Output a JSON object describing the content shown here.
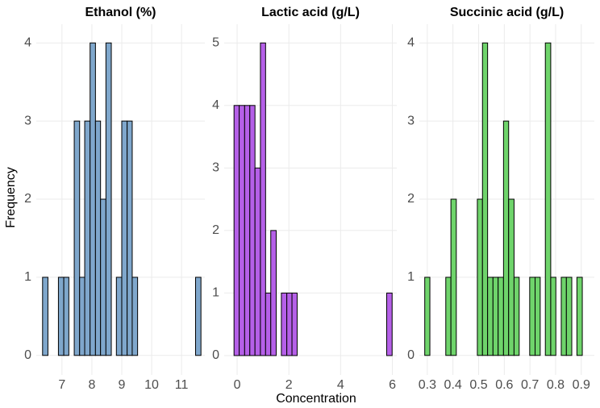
{
  "shared": {
    "x_label": "Concentration",
    "y_label": "Frequency"
  },
  "chart_data": [
    {
      "type": "histogram",
      "title": "Ethanol (%)",
      "color": "#7fa7cc",
      "bins": [
        6.35,
        6.53,
        6.7,
        6.88,
        7.06,
        7.23,
        7.41,
        7.59,
        7.76,
        7.94,
        8.12,
        8.29,
        8.47,
        8.65,
        8.82,
        9.0,
        9.18,
        9.35,
        9.53,
        9.71,
        9.88,
        10.06,
        10.24,
        10.41,
        10.59,
        10.77,
        10.94,
        11.12,
        11.3,
        11.47,
        11.65
      ],
      "values": [
        1,
        0,
        0,
        1,
        1,
        0,
        3,
        1,
        3,
        4,
        3,
        2,
        4,
        0,
        1,
        3,
        3,
        1,
        0,
        0,
        0,
        0,
        0,
        0,
        0,
        0,
        0,
        0,
        0,
        1
      ],
      "xlim": [
        6.14,
        11.78
      ],
      "xticks": [
        7,
        8,
        9,
        10,
        11
      ],
      "ylim": [
        -0.25,
        4.24
      ],
      "yticks": [
        0,
        1,
        2,
        3,
        4
      ],
      "grid": true
    },
    {
      "type": "histogram",
      "title": "Lactic acid (g/L)",
      "color": "#b560e8",
      "bins": [
        -0.12,
        0.08,
        0.29,
        0.49,
        0.69,
        0.9,
        1.1,
        1.3,
        1.51,
        1.71,
        1.92,
        2.12,
        2.32,
        2.53,
        2.73,
        2.93,
        3.14,
        3.34,
        3.54,
        3.75,
        3.95,
        4.16,
        4.36,
        4.56,
        4.77,
        4.97,
        5.17,
        5.38,
        5.58,
        5.78,
        5.99
      ],
      "values": [
        4,
        4,
        4,
        4,
        3,
        5,
        1,
        2,
        0,
        1,
        1,
        1,
        0,
        0,
        0,
        0,
        0,
        0,
        0,
        0,
        0,
        0,
        0,
        0,
        0,
        0,
        0,
        0,
        0,
        1
      ],
      "xlim": [
        -0.5,
        6.17
      ],
      "xticks": [
        0,
        2,
        4,
        6
      ],
      "ylim": [
        -0.31,
        5.3
      ],
      "yticks": [
        0,
        1,
        2,
        3,
        4,
        5
      ],
      "grid": true
    },
    {
      "type": "histogram",
      "title": "Succinic acid (g/L)",
      "color": "#6fd46b",
      "bins": [
        0.29,
        0.31,
        0.331,
        0.351,
        0.372,
        0.392,
        0.413,
        0.433,
        0.454,
        0.474,
        0.495,
        0.515,
        0.535,
        0.556,
        0.576,
        0.597,
        0.617,
        0.638,
        0.658,
        0.679,
        0.699,
        0.72,
        0.74,
        0.76,
        0.781,
        0.801,
        0.822,
        0.842,
        0.863,
        0.883,
        0.904
      ],
      "values": [
        1,
        0,
        0,
        0,
        1,
        2,
        0,
        0,
        0,
        0,
        2,
        4,
        1,
        1,
        1,
        3,
        2,
        1,
        0,
        0,
        1,
        1,
        0,
        4,
        1,
        0,
        1,
        1,
        0,
        1
      ],
      "xlim": [
        0.269,
        0.951
      ],
      "xticks": [
        0.3,
        0.4,
        0.5,
        0.6,
        0.7,
        0.8,
        0.9
      ],
      "ylim": [
        -0.25,
        4.24
      ],
      "yticks": [
        0,
        1,
        2,
        3,
        4
      ],
      "grid": true
    }
  ]
}
